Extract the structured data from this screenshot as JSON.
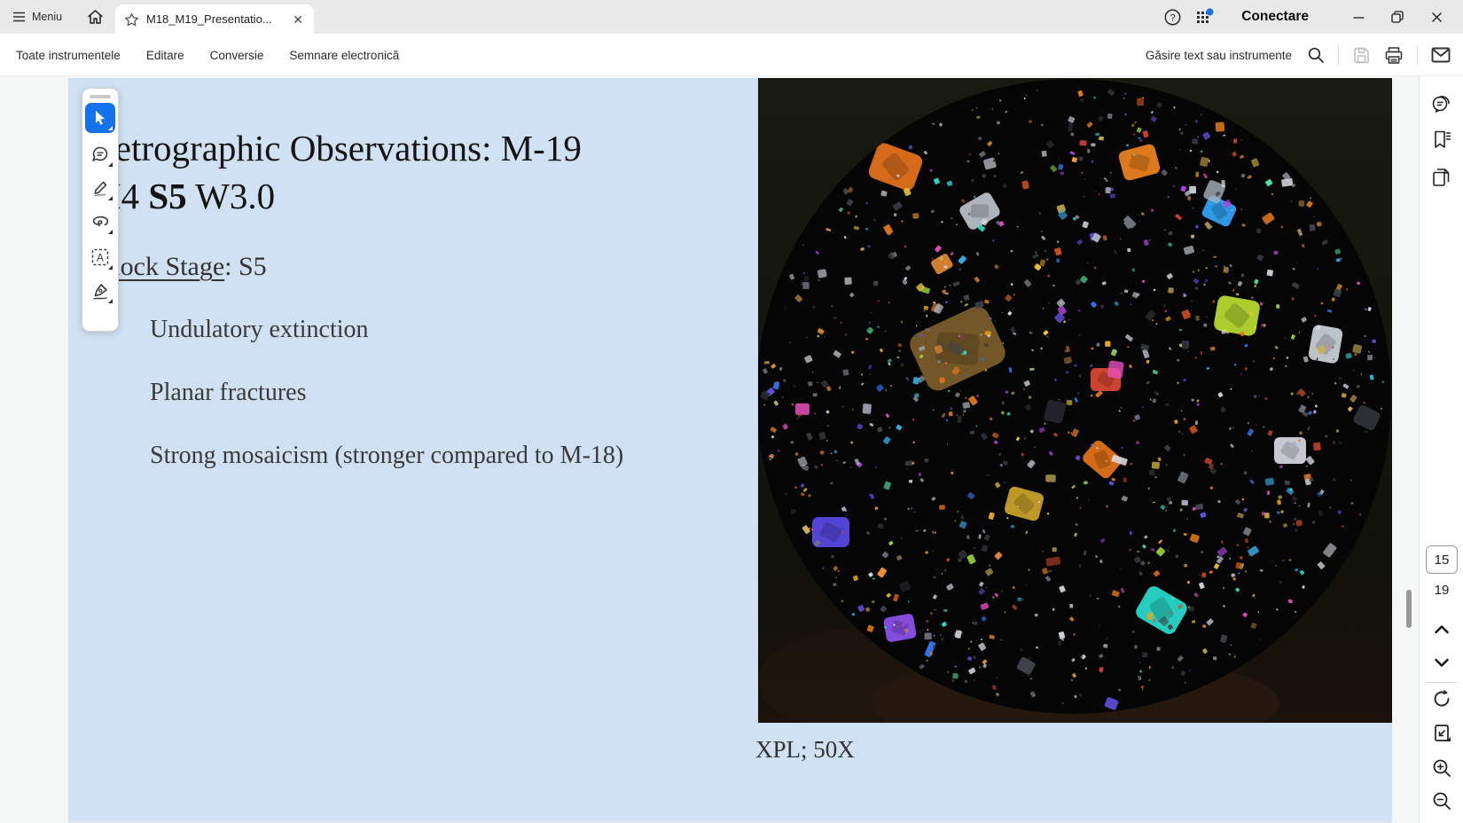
{
  "titlebar": {
    "menu_label": "Meniu",
    "tab_title": "M18_M19_Presentatio...",
    "tab_close": "✕",
    "signin_label": "Conectare"
  },
  "toolbar": {
    "items": [
      {
        "label": "Toate instrumentele"
      },
      {
        "label": "Editare"
      },
      {
        "label": "Conversie"
      },
      {
        "label": "Semnare electronică"
      }
    ],
    "search_label": "Găsire text sau instrumente"
  },
  "pagenav": {
    "current": "15",
    "total": "19"
  },
  "slide": {
    "title_line1": "Petrographic Observations: M-19",
    "title_line2_pre": "H4 ",
    "title_line2_bold": "S5",
    "title_line2_post": " W3.0",
    "shock_label": "Shock Stage",
    "shock_value": ": S5",
    "bullets": [
      "Undulatory extinction",
      "Planar fractures",
      "Strong mosaicism (stronger compared to M-18)"
    ],
    "caption": "XPL; 50X"
  },
  "icons": {
    "hamburger-icon": "≡",
    "home-icon": "⌂",
    "favorite-star-icon": "☆",
    "close-icon": "✕",
    "help-icon": "?",
    "apps-grid-icon": "grid-3x3-with-blue-dot",
    "minimize-icon": "—",
    "restore-icon": "❐",
    "search-icon": "magnifier",
    "save-icon": "floppy-disk",
    "print-icon": "printer",
    "mail-icon": "envelope",
    "cursor-icon": "select-arrow",
    "comment-icon": "speech-bubble",
    "pen-icon": "highlighter-pen",
    "lasso-icon": "lasso-loop",
    "text-select-icon": "dashed-box-A",
    "sign-icon": "fountain-pen-nib",
    "comments-icon": "round-speech-bubble",
    "bookmarks-icon": "bookmark-ribbon",
    "pages-icon": "overlapping-pages",
    "chevron-up-icon": "chevron-up",
    "chevron-down-icon": "chevron-down",
    "rotate-icon": "circular-arrow",
    "fit-page-icon": "page-with-arrow",
    "zoom-in-icon": "magnifier-plus",
    "zoom-out-icon": "magnifier-minus"
  },
  "colors": {
    "slide_bg": "#cfe1f2",
    "titlebar_bg": "#e9e9e9",
    "accent_blue": "#1372ec",
    "notification_dot": "#1a73e8",
    "body_text": "#3a3a3a"
  }
}
